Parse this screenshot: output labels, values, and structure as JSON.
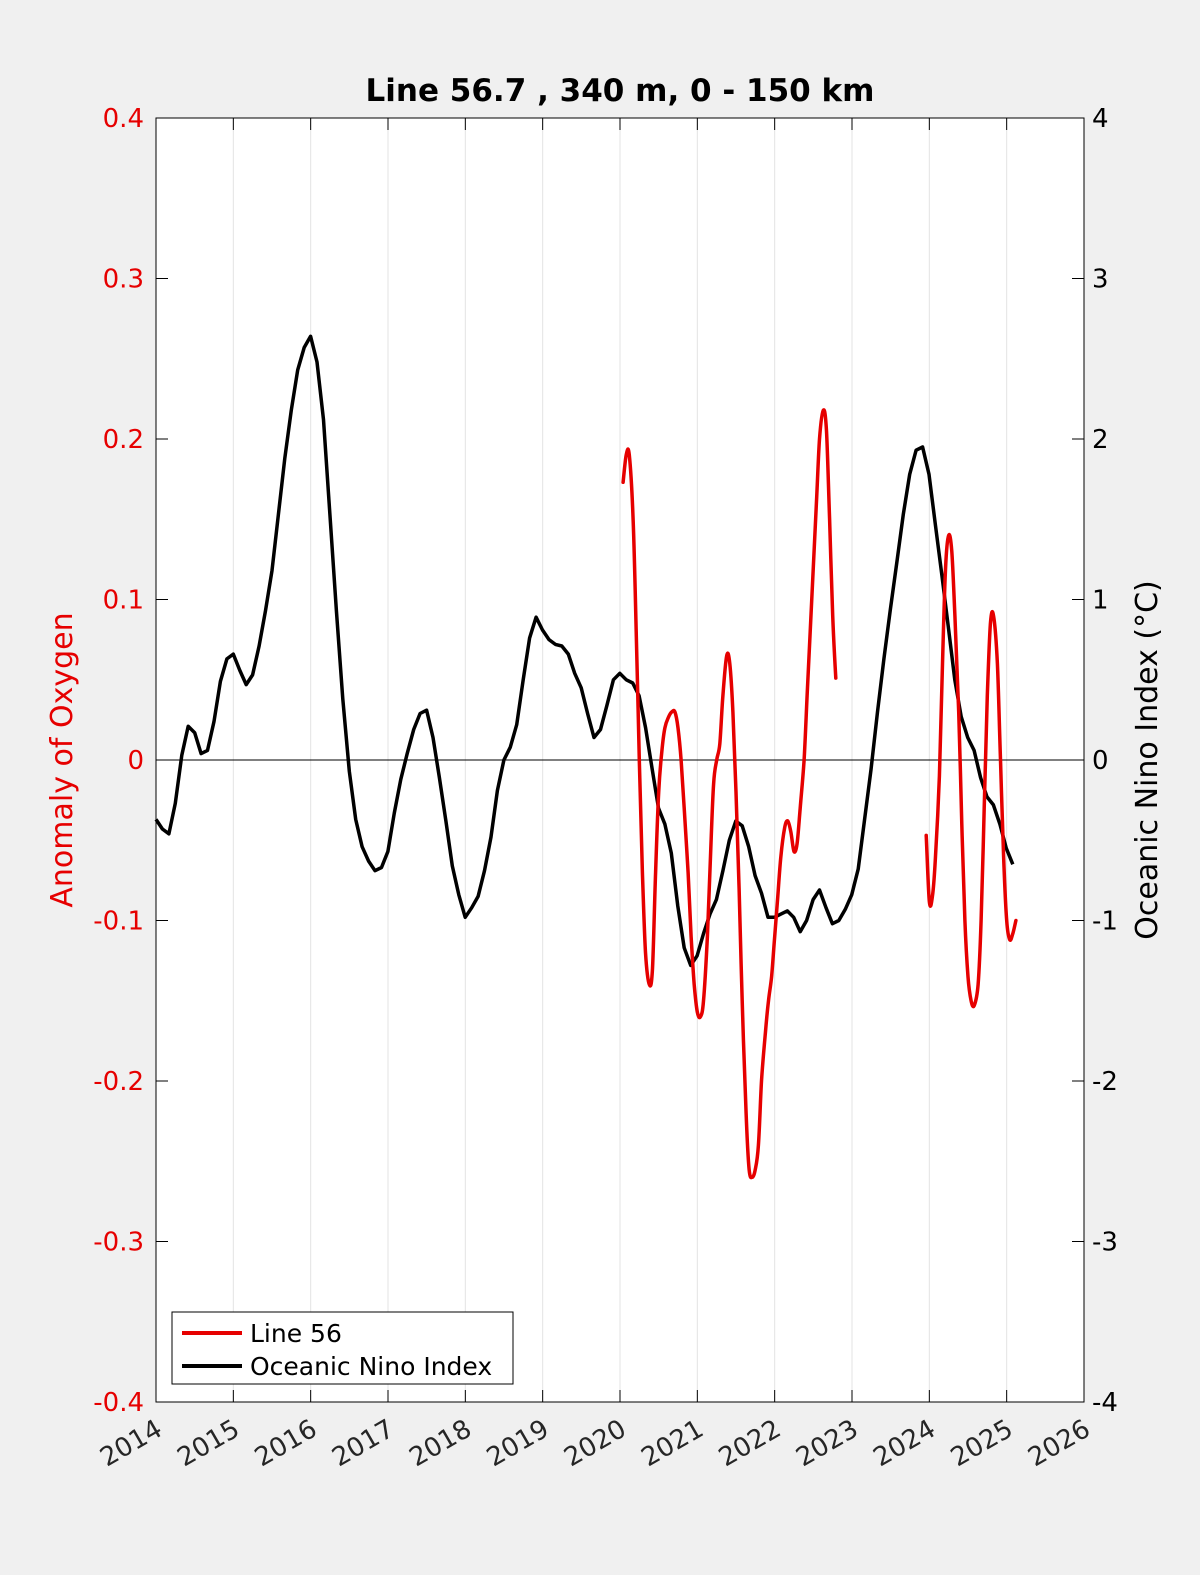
{
  "chart_data": {
    "type": "line",
    "title": "Line 56.7 , 340 m, 0 - 150 km",
    "xlabel": "",
    "ylabel_left": "Anomaly of Oxygen",
    "ylabel_right": "Oceanic Nino Index (°C)",
    "xlim": [
      2014,
      2026
    ],
    "ylim_left": [
      -0.4,
      0.4
    ],
    "ylim_right": [
      -4,
      4
    ],
    "x_ticks": [
      "2014",
      "2015",
      "2016",
      "2017",
      "2018",
      "2019",
      "2020",
      "2021",
      "2022",
      "2023",
      "2024",
      "2025",
      "2026"
    ],
    "y_ticks_left": [
      "0.4",
      "0.3",
      "0.2",
      "0.1",
      "0",
      "-0.1",
      "-0.2",
      "-0.3",
      "-0.4"
    ],
    "y_ticks_right": [
      "4",
      "3",
      "2",
      "1",
      "0",
      "-1",
      "-2",
      "-3",
      "-4"
    ],
    "grid": "vertical",
    "legend_position": "bottom-left",
    "colors": {
      "line56": "#e60000",
      "oni": "#000000",
      "left_axis": "#e60000",
      "right_axis": "#000000"
    },
    "series": [
      {
        "name": "Line 56",
        "axis": "left",
        "segments": [
          [
            [
              2020.04,
              0.173
            ],
            [
              2020.08,
              0.19
            ],
            [
              2020.12,
              0.19
            ],
            [
              2020.17,
              0.15
            ],
            [
              2020.21,
              0.08
            ],
            [
              2020.25,
              0.0
            ],
            [
              2020.29,
              -0.07
            ],
            [
              2020.33,
              -0.12
            ],
            [
              2020.38,
              -0.14
            ],
            [
              2020.42,
              -0.13
            ],
            [
              2020.46,
              -0.07
            ],
            [
              2020.5,
              -0.02
            ],
            [
              2020.54,
              0.005
            ],
            [
              2020.58,
              0.02
            ],
            [
              2020.63,
              0.027
            ],
            [
              2020.67,
              0.03
            ],
            [
              2020.71,
              0.03
            ],
            [
              2020.75,
              0.02
            ],
            [
              2020.79,
              0.0
            ],
            [
              2020.83,
              -0.03
            ],
            [
              2020.88,
              -0.07
            ],
            [
              2020.92,
              -0.11
            ],
            [
              2020.96,
              -0.14
            ],
            [
              2021.0,
              -0.157
            ],
            [
              2021.04,
              -0.16
            ],
            [
              2021.08,
              -0.15
            ],
            [
              2021.13,
              -0.11
            ],
            [
              2021.17,
              -0.06
            ],
            [
              2021.21,
              -0.015
            ],
            [
              2021.25,
              0.0
            ],
            [
              2021.29,
              0.01
            ],
            [
              2021.33,
              0.04
            ],
            [
              2021.38,
              0.065
            ],
            [
              2021.42,
              0.06
            ],
            [
              2021.46,
              0.03
            ],
            [
              2021.5,
              -0.02
            ],
            [
              2021.54,
              -0.08
            ],
            [
              2021.58,
              -0.15
            ],
            [
              2021.63,
              -0.22
            ],
            [
              2021.67,
              -0.255
            ],
            [
              2021.71,
              -0.26
            ],
            [
              2021.75,
              -0.255
            ],
            [
              2021.79,
              -0.24
            ],
            [
              2021.83,
              -0.2
            ],
            [
              2021.88,
              -0.17
            ],
            [
              2021.92,
              -0.15
            ],
            [
              2021.96,
              -0.135
            ],
            [
              2022.0,
              -0.11
            ],
            [
              2022.04,
              -0.085
            ],
            [
              2022.08,
              -0.06
            ],
            [
              2022.13,
              -0.042
            ],
            [
              2022.17,
              -0.038
            ],
            [
              2022.21,
              -0.045
            ],
            [
              2022.25,
              -0.057
            ],
            [
              2022.29,
              -0.052
            ],
            [
              2022.33,
              -0.03
            ],
            [
              2022.38,
              0.0
            ],
            [
              2022.42,
              0.04
            ],
            [
              2022.46,
              0.08
            ],
            [
              2022.5,
              0.12
            ],
            [
              2022.54,
              0.16
            ],
            [
              2022.58,
              0.2
            ],
            [
              2022.63,
              0.218
            ],
            [
              2022.67,
              0.205
            ],
            [
              2022.71,
              0.15
            ],
            [
              2022.75,
              0.09
            ],
            [
              2022.79,
              0.051
            ]
          ],
          [
            [
              2023.96,
              -0.047
            ],
            [
              2024.0,
              -0.088
            ],
            [
              2024.04,
              -0.085
            ],
            [
              2024.08,
              -0.06
            ],
            [
              2024.13,
              -0.01
            ],
            [
              2024.17,
              0.06
            ],
            [
              2024.21,
              0.12
            ],
            [
              2024.25,
              0.14
            ],
            [
              2024.29,
              0.13
            ],
            [
              2024.33,
              0.09
            ],
            [
              2024.38,
              0.03
            ],
            [
              2024.42,
              -0.04
            ],
            [
              2024.46,
              -0.1
            ],
            [
              2024.5,
              -0.135
            ],
            [
              2024.54,
              -0.15
            ],
            [
              2024.58,
              -0.153
            ],
            [
              2024.63,
              -0.14
            ],
            [
              2024.67,
              -0.1
            ],
            [
              2024.71,
              -0.03
            ],
            [
              2024.75,
              0.04
            ],
            [
              2024.79,
              0.085
            ],
            [
              2024.83,
              0.09
            ],
            [
              2024.88,
              0.06
            ],
            [
              2024.92,
              0.0
            ],
            [
              2024.96,
              -0.06
            ],
            [
              2025.0,
              -0.1
            ],
            [
              2025.04,
              -0.112
            ],
            [
              2025.08,
              -0.108
            ],
            [
              2025.12,
              -0.1
            ]
          ]
        ]
      },
      {
        "name": "Oceanic Nino Index",
        "axis": "right",
        "x_start": 2014.0,
        "x_step": 0.0833,
        "values": [
          -0.37,
          -0.43,
          -0.46,
          -0.27,
          0.03,
          0.21,
          0.17,
          0.04,
          0.06,
          0.24,
          0.49,
          0.63,
          0.66,
          0.56,
          0.47,
          0.53,
          0.71,
          0.93,
          1.18,
          1.53,
          1.88,
          2.18,
          2.43,
          2.57,
          2.64,
          2.48,
          2.12,
          1.53,
          0.93,
          0.38,
          -0.07,
          -0.37,
          -0.54,
          -0.63,
          -0.69,
          -0.67,
          -0.57,
          -0.33,
          -0.12,
          0.04,
          0.19,
          0.29,
          0.31,
          0.14,
          -0.11,
          -0.38,
          -0.66,
          -0.84,
          -0.98,
          -0.92,
          -0.85,
          -0.69,
          -0.48,
          -0.19,
          0.0,
          0.08,
          0.22,
          0.5,
          0.76,
          0.89,
          0.81,
          0.75,
          0.72,
          0.71,
          0.66,
          0.54,
          0.45,
          0.29,
          0.14,
          0.19,
          0.34,
          0.5,
          0.54,
          0.5,
          0.48,
          0.4,
          0.2,
          -0.05,
          -0.3,
          -0.4,
          -0.58,
          -0.91,
          -1.17,
          -1.28,
          -1.22,
          -1.08,
          -0.96,
          -0.87,
          -0.69,
          -0.5,
          -0.38,
          -0.41,
          -0.54,
          -0.72,
          -0.83,
          -0.98,
          -0.98,
          -0.96,
          -0.94,
          -0.98,
          -1.07,
          -1.0,
          -0.87,
          -0.81,
          -0.92,
          -1.02,
          -1.0,
          -0.93,
          -0.84,
          -0.68,
          -0.37,
          -0.06,
          0.3,
          0.63,
          0.94,
          1.23,
          1.53,
          1.78,
          1.93,
          1.95,
          1.78,
          1.46,
          1.15,
          0.83,
          0.5,
          0.27,
          0.14,
          0.06,
          -0.11,
          -0.23,
          -0.28,
          -0.4,
          -0.55,
          -0.65
        ]
      }
    ]
  }
}
